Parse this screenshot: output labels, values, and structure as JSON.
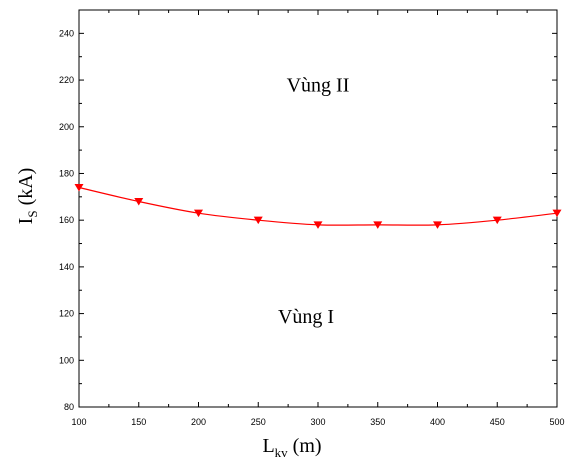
{
  "chart_data": {
    "type": "line",
    "xlabel_main": "L",
    "xlabel_sub": "kv",
    "xlabel_unit": " (m)",
    "ylabel_main": "I",
    "ylabel_sub": "S",
    "ylabel_unit": " (kA)",
    "xlim": [
      100,
      500
    ],
    "ylim": [
      80,
      250
    ],
    "xticks": [
      100,
      150,
      200,
      250,
      300,
      350,
      400,
      450,
      500
    ],
    "yticks": [
      80,
      100,
      120,
      140,
      160,
      180,
      200,
      220,
      240
    ],
    "grid": false,
    "legend": "none",
    "series": [
      {
        "color": "#ff0000",
        "marker": "triangle-down",
        "x": [
          100,
          150,
          200,
          250,
          300,
          350,
          400,
          450,
          500
        ],
        "y": [
          174,
          168,
          163,
          160,
          158,
          158,
          158,
          160,
          163
        ]
      }
    ],
    "annotations": [
      {
        "text": "Vùng II",
        "x": 300,
        "y": 215
      },
      {
        "text": "Vùng I",
        "x": 290,
        "y": 116
      }
    ]
  }
}
